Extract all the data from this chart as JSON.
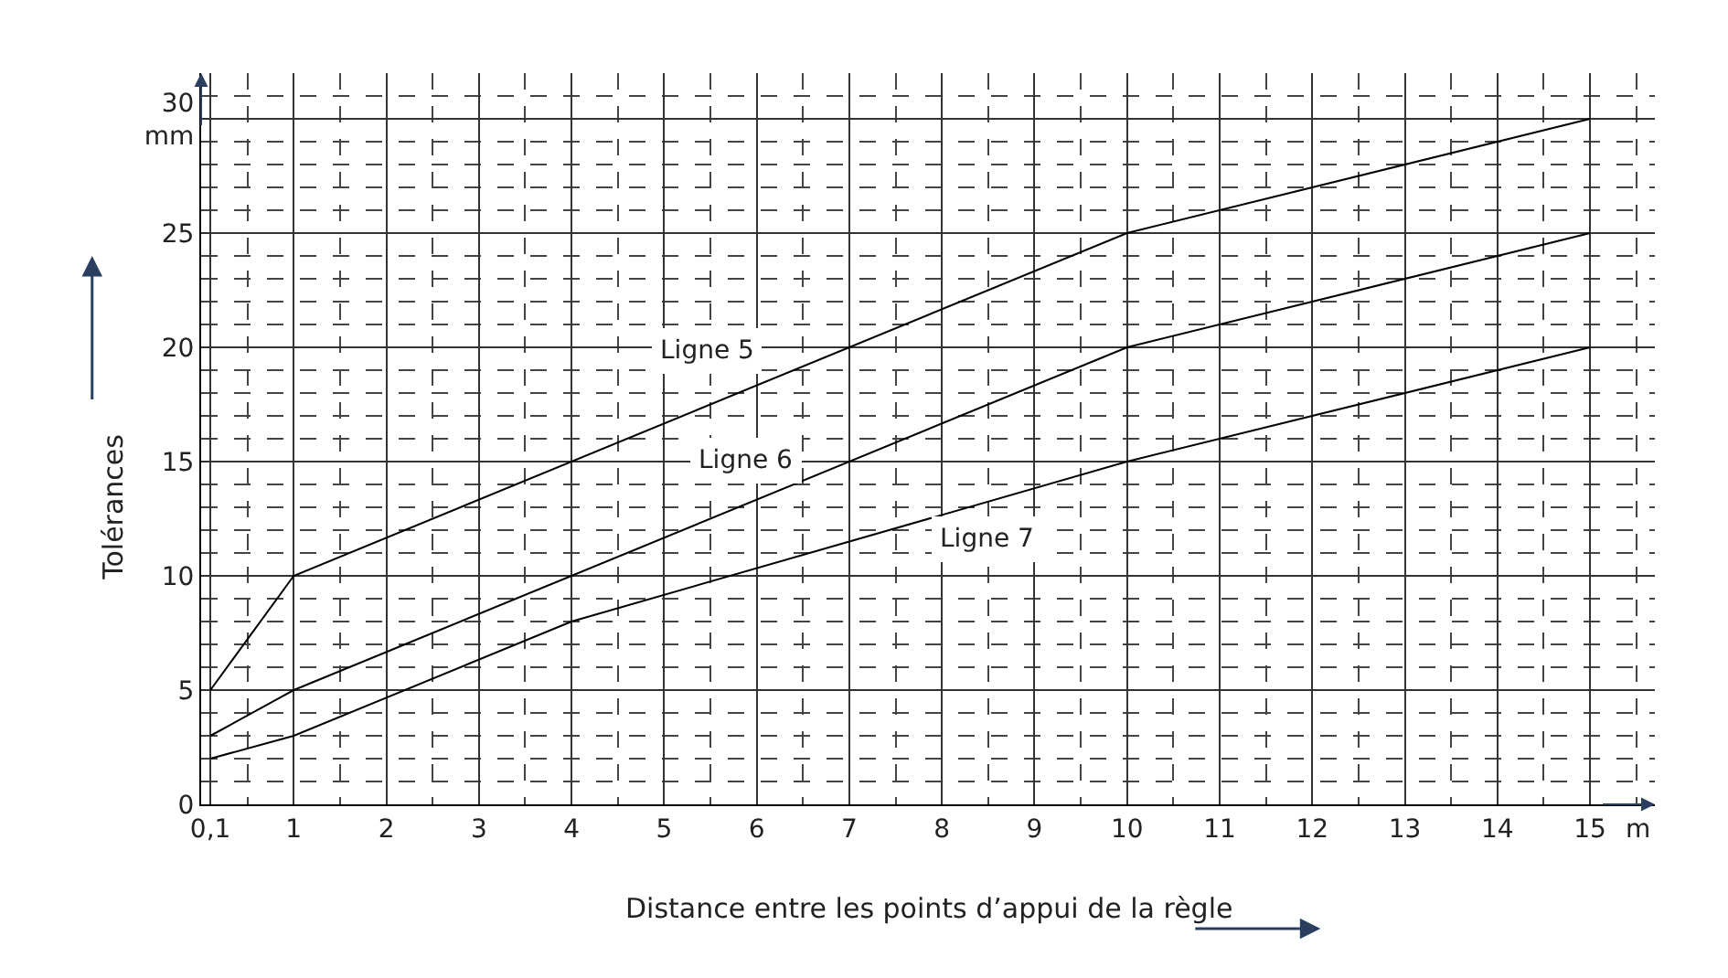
{
  "chart_data": {
    "type": "line",
    "xlabel": "Distance entre les points d’appui de la règle",
    "ylabel": "Tolérances",
    "x": [
      0.1,
      1,
      4,
      10,
      15
    ],
    "series": [
      {
        "name": "Ligne 5",
        "color": "#000000",
        "x": [
          0.1,
          1,
          10,
          15
        ],
        "values": [
          5,
          10,
          25,
          30
        ]
      },
      {
        "name": "Ligne 6",
        "color": "#000000",
        "x": [
          0.1,
          1,
          10,
          15
        ],
        "values": [
          3,
          5,
          20,
          25
        ]
      },
      {
        "name": "Ligne 7",
        "color": "#000000",
        "values": [
          2,
          3,
          8,
          15,
          20
        ]
      }
    ],
    "xlim": [
      0,
      15.7
    ],
    "ylim": [
      0,
      32
    ],
    "xticks": [
      {
        "value": 0.1,
        "label": "0,1"
      },
      1,
      2,
      3,
      4,
      5,
      6,
      7,
      8,
      9,
      10,
      11,
      12,
      13,
      14,
      15
    ],
    "yticks": [
      0,
      5,
      10,
      15,
      20,
      25,
      {
        "value": 30,
        "label": "30\nmm"
      }
    ],
    "annotations": [
      "m"
    ],
    "grid": true,
    "legend": false,
    "marker": "none",
    "line_style": "solid"
  }
}
